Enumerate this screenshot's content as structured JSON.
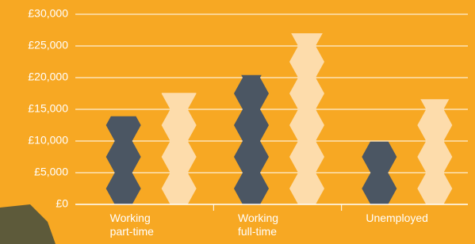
{
  "chart_data": {
    "type": "bar",
    "categories": [
      "Working part-time",
      "Working full-time",
      "Unemployed"
    ],
    "series": [
      {
        "color": "#4b5663",
        "values": [
          13900,
          20400,
          9900
        ]
      },
      {
        "color": "#fddcab",
        "values": [
          17600,
          27000,
          16600
        ]
      }
    ],
    "ylim": [
      0,
      30000
    ],
    "yticks": [
      {
        "value": 0,
        "label": "£0"
      },
      {
        "value": 5000,
        "label": "£5,000"
      },
      {
        "value": 10000,
        "label": "£10,000"
      },
      {
        "value": 15000,
        "label": "£15,000"
      },
      {
        "value": 20000,
        "label": "£20,000"
      },
      {
        "value": 25000,
        "label": "£25,000"
      },
      {
        "value": 30000,
        "label": "£30,000"
      }
    ],
    "grid": true
  }
}
